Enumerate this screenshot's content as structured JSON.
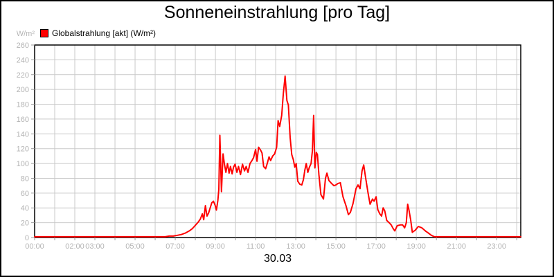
{
  "header": {
    "title": "Sonneneinstrahlung [pro Tag]"
  },
  "legend": {
    "label": "Globalstrahlung [akt] (W/m²)",
    "swatch_color": "#ff0000"
  },
  "axes": {
    "y_unit": "W/m²",
    "x_date_label": "30.03"
  },
  "colors": {
    "series": "#ff0000",
    "grid": "#c9c9c9",
    "axis": "#000000",
    "tick": "#999999",
    "tick_label": "#b4b4b4",
    "background": "#ffffff",
    "border": "#000000"
  },
  "chart_data": {
    "type": "line",
    "title": "Sonneneinstrahlung [pro Tag]",
    "xlabel": "30.03",
    "ylabel": "W/m²",
    "ylim": [
      0,
      260
    ],
    "xlim_hours": [
      0,
      24.2
    ],
    "grid": true,
    "legend_position": "top-left",
    "y_ticks": [
      0,
      20,
      40,
      60,
      80,
      100,
      120,
      140,
      160,
      180,
      200,
      220,
      240,
      260
    ],
    "x_minor_tick_every_hours": 1,
    "x_ticks": [
      {
        "h": 0,
        "label": "00:00"
      },
      {
        "h": 2,
        "label": "02:00"
      },
      {
        "h": 3,
        "label": "03:00"
      },
      {
        "h": 5,
        "label": "05:00"
      },
      {
        "h": 7,
        "label": "07:00"
      },
      {
        "h": 9,
        "label": "09:00"
      },
      {
        "h": 11,
        "label": "11:00"
      },
      {
        "h": 13,
        "label": "13:00"
      },
      {
        "h": 15,
        "label": "15:00"
      },
      {
        "h": 17,
        "label": "17:00"
      },
      {
        "h": 19,
        "label": "19:00"
      },
      {
        "h": 21,
        "label": "21:00"
      },
      {
        "h": 23,
        "label": "23:00"
      }
    ],
    "series": [
      {
        "name": "Globalstrahlung [akt] (W/m²)",
        "color": "#ff0000",
        "points": [
          [
            0.0,
            1
          ],
          [
            0.5,
            1
          ],
          [
            1.0,
            1
          ],
          [
            1.5,
            1
          ],
          [
            2.0,
            1
          ],
          [
            2.5,
            1
          ],
          [
            3.0,
            1
          ],
          [
            3.5,
            1
          ],
          [
            4.0,
            1
          ],
          [
            4.5,
            1
          ],
          [
            5.0,
            1
          ],
          [
            5.5,
            1
          ],
          [
            6.0,
            1
          ],
          [
            6.3,
            1
          ],
          [
            6.5,
            1
          ],
          [
            6.7,
            2
          ],
          [
            6.9,
            2
          ],
          [
            7.1,
            3
          ],
          [
            7.3,
            4
          ],
          [
            7.5,
            6
          ],
          [
            7.7,
            9
          ],
          [
            7.85,
            12
          ],
          [
            7.95,
            15
          ],
          [
            8.05,
            18
          ],
          [
            8.15,
            21
          ],
          [
            8.25,
            25
          ],
          [
            8.35,
            32
          ],
          [
            8.42,
            24
          ],
          [
            8.5,
            43
          ],
          [
            8.58,
            29
          ],
          [
            8.66,
            33
          ],
          [
            8.74,
            40
          ],
          [
            8.82,
            47
          ],
          [
            8.9,
            49
          ],
          [
            8.98,
            44
          ],
          [
            9.05,
            37
          ],
          [
            9.12,
            50
          ],
          [
            9.17,
            65
          ],
          [
            9.22,
            138
          ],
          [
            9.3,
            62
          ],
          [
            9.38,
            113
          ],
          [
            9.45,
            99
          ],
          [
            9.52,
            88
          ],
          [
            9.6,
            100
          ],
          [
            9.68,
            87
          ],
          [
            9.75,
            96
          ],
          [
            9.83,
            86
          ],
          [
            9.9,
            95
          ],
          [
            9.98,
            99
          ],
          [
            10.07,
            88
          ],
          [
            10.15,
            96
          ],
          [
            10.25,
            85
          ],
          [
            10.35,
            99
          ],
          [
            10.45,
            90
          ],
          [
            10.53,
            96
          ],
          [
            10.62,
            88
          ],
          [
            10.72,
            100
          ],
          [
            10.82,
            104
          ],
          [
            10.9,
            108
          ],
          [
            11.0,
            119
          ],
          [
            11.07,
            103
          ],
          [
            11.15,
            122
          ],
          [
            11.25,
            118
          ],
          [
            11.32,
            114
          ],
          [
            11.4,
            96
          ],
          [
            11.5,
            93
          ],
          [
            11.58,
            100
          ],
          [
            11.67,
            109
          ],
          [
            11.75,
            104
          ],
          [
            11.85,
            110
          ],
          [
            11.95,
            113
          ],
          [
            12.05,
            122
          ],
          [
            12.12,
            158
          ],
          [
            12.2,
            150
          ],
          [
            12.3,
            165
          ],
          [
            12.38,
            194
          ],
          [
            12.47,
            218
          ],
          [
            12.56,
            185
          ],
          [
            12.63,
            179
          ],
          [
            12.72,
            135
          ],
          [
            12.8,
            112
          ],
          [
            12.88,
            105
          ],
          [
            12.95,
            95
          ],
          [
            13.02,
            100
          ],
          [
            13.1,
            76
          ],
          [
            13.2,
            72
          ],
          [
            13.3,
            71
          ],
          [
            13.38,
            78
          ],
          [
            13.45,
            91
          ],
          [
            13.52,
            100
          ],
          [
            13.6,
            88
          ],
          [
            13.68,
            95
          ],
          [
            13.76,
            100
          ],
          [
            13.83,
            118
          ],
          [
            13.89,
            165
          ],
          [
            13.95,
            94
          ],
          [
            14.02,
            115
          ],
          [
            14.08,
            112
          ],
          [
            14.15,
            85
          ],
          [
            14.25,
            58
          ],
          [
            14.38,
            52
          ],
          [
            14.48,
            80
          ],
          [
            14.55,
            87
          ],
          [
            14.65,
            77
          ],
          [
            14.78,
            73
          ],
          [
            14.9,
            70
          ],
          [
            15.0,
            71
          ],
          [
            15.1,
            73
          ],
          [
            15.22,
            74
          ],
          [
            15.35,
            55
          ],
          [
            15.5,
            43
          ],
          [
            15.62,
            31
          ],
          [
            15.72,
            34
          ],
          [
            15.85,
            46
          ],
          [
            16.0,
            66
          ],
          [
            16.1,
            71
          ],
          [
            16.2,
            66
          ],
          [
            16.3,
            90
          ],
          [
            16.38,
            98
          ],
          [
            16.48,
            80
          ],
          [
            16.6,
            60
          ],
          [
            16.7,
            45
          ],
          [
            16.82,
            52
          ],
          [
            16.9,
            49
          ],
          [
            17.0,
            55
          ],
          [
            17.08,
            38
          ],
          [
            17.18,
            32
          ],
          [
            17.27,
            29
          ],
          [
            17.35,
            40
          ],
          [
            17.43,
            36
          ],
          [
            17.53,
            23
          ],
          [
            17.65,
            20
          ],
          [
            17.75,
            17
          ],
          [
            17.85,
            12
          ],
          [
            17.93,
            9
          ],
          [
            18.05,
            16
          ],
          [
            18.2,
            17
          ],
          [
            18.32,
            17
          ],
          [
            18.42,
            13
          ],
          [
            18.5,
            20
          ],
          [
            18.57,
            45
          ],
          [
            18.63,
            38
          ],
          [
            18.72,
            24
          ],
          [
            18.8,
            7
          ],
          [
            18.95,
            10
          ],
          [
            19.1,
            15
          ],
          [
            19.28,
            13
          ],
          [
            19.45,
            9
          ],
          [
            19.6,
            6
          ],
          [
            19.75,
            3
          ],
          [
            19.9,
            1
          ],
          [
            20.05,
            1
          ],
          [
            20.3,
            1
          ],
          [
            20.7,
            1
          ],
          [
            21.0,
            1
          ],
          [
            21.5,
            1
          ],
          [
            22.0,
            1
          ],
          [
            22.5,
            1
          ],
          [
            23.0,
            1
          ],
          [
            23.5,
            1
          ],
          [
            24.0,
            1
          ],
          [
            24.2,
            1
          ]
        ]
      }
    ]
  }
}
